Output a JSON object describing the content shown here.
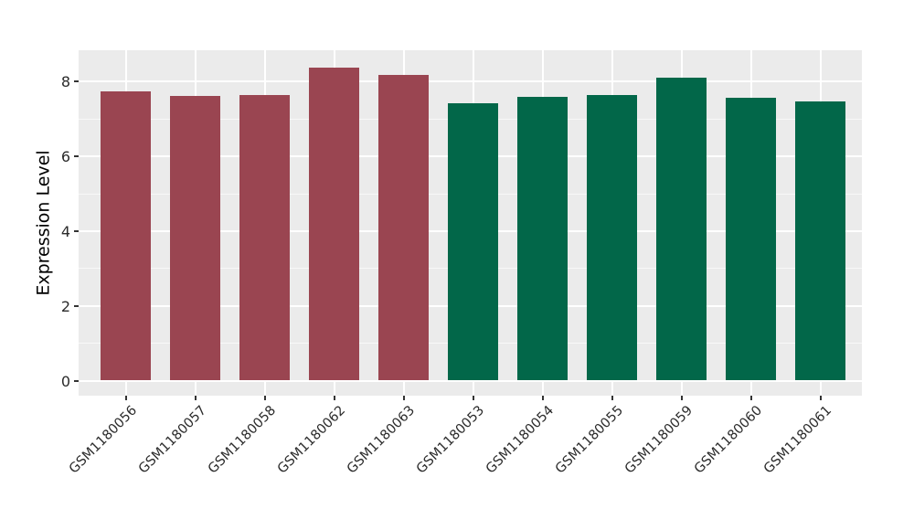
{
  "chart_data": {
    "type": "bar",
    "title": "",
    "xlabel": "",
    "ylabel": "Expression Level",
    "categories": [
      "GSM1180056",
      "GSM1180057",
      "GSM1180058",
      "GSM1180062",
      "GSM1180063",
      "GSM1180053",
      "GSM1180054",
      "GSM1180055",
      "GSM1180059",
      "GSM1180060",
      "GSM1180061"
    ],
    "values": [
      7.75,
      7.62,
      7.65,
      8.38,
      8.18,
      7.41,
      7.58,
      7.65,
      8.1,
      7.56,
      7.48
    ],
    "bar_colors": [
      "#9A4551",
      "#9A4551",
      "#9A4551",
      "#9A4551",
      "#9A4551",
      "#026749",
      "#026749",
      "#026749",
      "#026749",
      "#026749",
      "#026749"
    ],
    "group_colors": {
      "group1_maroon": "#9A4551",
      "group2_green": "#026749"
    },
    "yticks": [
      0,
      2,
      4,
      6,
      8
    ],
    "yticks_minor": [
      1,
      3,
      5,
      7
    ],
    "ylim": [
      0,
      8.8
    ],
    "x_tick_rotation_deg": 45,
    "legend_position": "none",
    "grid": true,
    "panel_background": "#EBEBEB",
    "grid_color": "#FFFFFF",
    "tick_color": "#333333"
  }
}
